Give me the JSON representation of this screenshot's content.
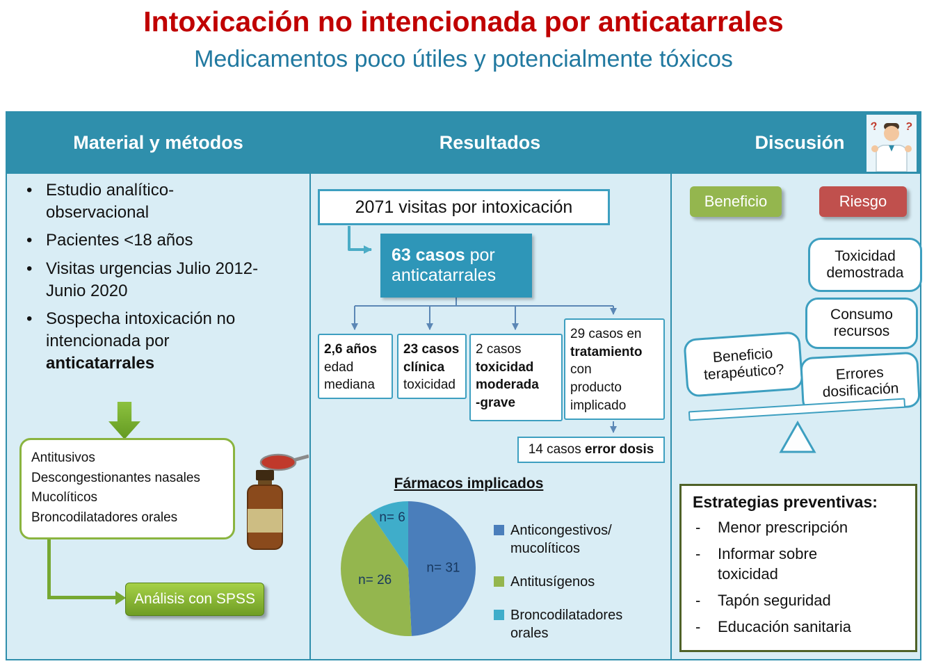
{
  "poster": {
    "title": "Intoxicación no intencionada por anticatarrales",
    "subtitle": "Medicamentos poco útiles y potencialmente tóxicos"
  },
  "header": {
    "methods": "Material y métodos",
    "results": "Resultados",
    "discussion": "Discusión"
  },
  "methods": {
    "bullet_1": "Estudio analítico-observacional",
    "bullet_2": "Pacientes <18 años",
    "bullet_3": "Visitas urgencias Julio 2012- Junio 2020",
    "bullet_4_text": "Sospecha intoxicación no intencionada por ",
    "bullet_4_bold": "anticatarrales",
    "drug_1": "Antitusivos",
    "drug_2": "Descongestionantes nasales",
    "drug_3": "Mucolíticos",
    "drug_4": "Broncodilatadores orales",
    "spss_button": "Análisis con SPSS"
  },
  "results": {
    "visits_box": "2071 visitas por intoxicación",
    "cases_bold": "63 casos",
    "cases_rest": " por anticatarrales",
    "box_age": {
      "bold": "2,6 años",
      "line2": "edad",
      "line3": "mediana"
    },
    "box_clinic": {
      "bold1": "23 casos",
      "bold2": "clínica",
      "line3": "toxicidad"
    },
    "box_severity": {
      "line1": "2 casos",
      "bold1": "toxicidad",
      "bold2": "moderada",
      "bold3": "-grave"
    },
    "box_treatment": {
      "line1": "29 casos en",
      "bold": "tratamiento",
      "line3": "con",
      "line4": "producto",
      "line5": "implicado"
    },
    "error_rest": "14 casos ",
    "error_bold": "error dosis"
  },
  "discussion": {
    "benefit_badge": "Beneficio",
    "risk_badge": "Riesgo",
    "bubble_toxicity": "Toxicidad demostrada",
    "bubble_resources": "Consumo recursos",
    "bubble_benefit": "Beneficio terapéutico?",
    "bubble_errors": "Errores dosificación",
    "strategies_title": "Estrategias preventivas:",
    "strategy_1": "Menor prescripción",
    "strategy_2": "Informar sobre toxicidad",
    "strategy_3": "Tapón seguridad",
    "strategy_4": "Educación sanitaria"
  },
  "chart_data": {
    "type": "pie",
    "title": "Fármacos implicados",
    "total": 63,
    "slices": [
      {
        "label": "Anticongestivos/ mucolíticos",
        "value": 31,
        "value_label": "n= 31",
        "color": "#4a7ebb"
      },
      {
        "label": "Antitusígenos",
        "value": 26,
        "value_label": "n= 26",
        "color": "#94b64e"
      },
      {
        "label": "Broncodilatadores orales",
        "value": 6,
        "value_label": "n= 6",
        "color": "#3fadca"
      }
    ],
    "start_angle_deg": 0,
    "direction": "clockwise",
    "legend_position": "right",
    "slice_label_color": "#17375e"
  },
  "icons": {
    "doctor": "doctor-with-question-marks",
    "question_mark": "?",
    "syrup_bottle": "syrup-bottle-and-spoon"
  },
  "colors": {
    "title_red": "#c00000",
    "subtitle_teal": "#2179a0",
    "header_teal": "#2f8fac",
    "panel_bg": "#d9edf5",
    "box_border_teal": "#3d9fc0",
    "cases_box_bg": "#2e96b8",
    "green_accent": "#76a832",
    "drug_box_border": "#8ab43f",
    "benefit_green": "#94b64e",
    "risk_red": "#c0504d",
    "connector_blue": "#5b87b5",
    "strategies_border": "#4f6228"
  }
}
